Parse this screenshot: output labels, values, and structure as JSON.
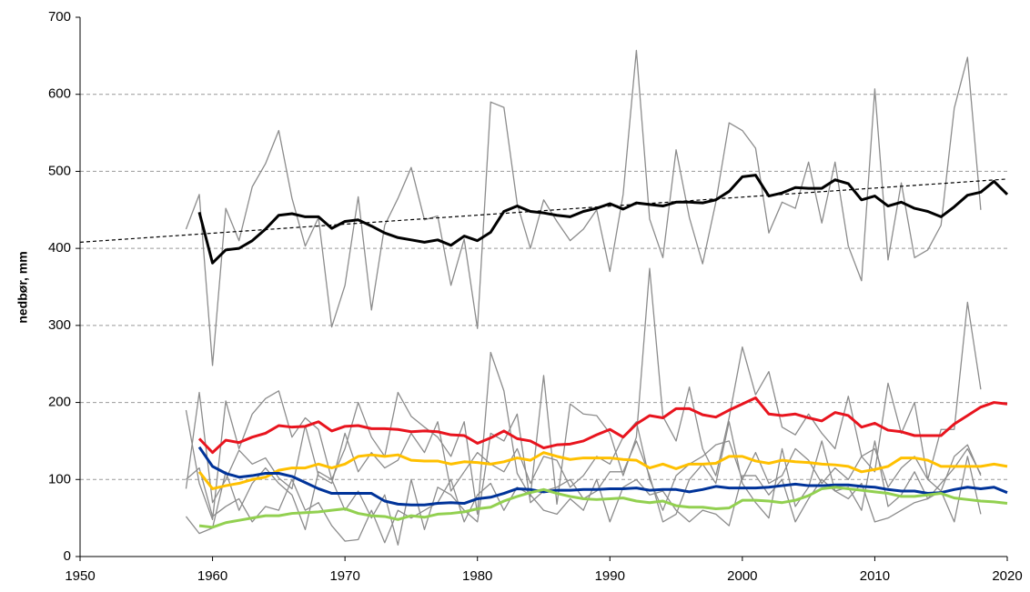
{
  "chart_data": {
    "type": "line",
    "y_label": "nedbør, mm",
    "xlim": [
      1950,
      2020
    ],
    "xticks": [
      1950,
      1960,
      1970,
      1980,
      1990,
      2000,
      2010,
      2020
    ],
    "ylim": [
      0,
      700
    ],
    "yticks": [
      0,
      100,
      200,
      300,
      400,
      500,
      600,
      700
    ],
    "grid": true,
    "x": [
      1958,
      1959,
      1960,
      1961,
      1962,
      1963,
      1964,
      1965,
      1966,
      1967,
      1968,
      1969,
      1970,
      1971,
      1972,
      1973,
      1974,
      1975,
      1976,
      1977,
      1978,
      1979,
      1980,
      1981,
      1982,
      1983,
      1984,
      1985,
      1986,
      1987,
      1988,
      1989,
      1990,
      1991,
      1992,
      1993,
      1994,
      1995,
      1996,
      1997,
      1998,
      1999,
      2000,
      2001,
      2002,
      2003,
      2004,
      2005,
      2006,
      2007,
      2008,
      2009,
      2010,
      2011,
      2012,
      2013,
      2014,
      2015,
      2016,
      2017,
      2018,
      2019,
      2020
    ],
    "series": [
      {
        "color": "#8c8c8c",
        "width": 1.3,
        "values": [
          425,
          470,
          248,
          452,
          410,
          480,
          510,
          553,
          465,
          403,
          440,
          298,
          352,
          467,
          320,
          430,
          465,
          505,
          437,
          442,
          352,
          412,
          296,
          590,
          583,
          458,
          400,
          463,
          435,
          410,
          425,
          450,
          370,
          470,
          657,
          438,
          388,
          528,
          440,
          380,
          460,
          563,
          553,
          530,
          420,
          460,
          452,
          512,
          433,
          512,
          403,
          358,
          607,
          385,
          485,
          388,
          398,
          430,
          582,
          648,
          450,
          null,
          null
        ]
      },
      {
        "color": "#8c8c8c",
        "width": 1.3,
        "values": [
          190,
          95,
          48,
          202,
          140,
          185,
          205,
          215,
          155,
          180,
          165,
          100,
          140,
          200,
          155,
          130,
          213,
          182,
          168,
          155,
          130,
          175,
          55,
          265,
          215,
          108,
          78,
          235,
          68,
          198,
          185,
          183,
          160,
          105,
          155,
          374,
          182,
          150,
          220,
          140,
          105,
          180,
          272,
          210,
          240,
          168,
          158,
          185,
          160,
          140,
          208,
          130,
          110,
          225,
          160,
          200,
          100,
          165,
          165,
          330,
          217,
          null,
          null
        ]
      },
      {
        "color": "#8c8c8c",
        "width": 1.3,
        "values": [
          88,
          213,
          70,
          100,
          138,
          120,
          128,
          102,
          88,
          170,
          105,
          95,
          160,
          110,
          135,
          115,
          125,
          160,
          135,
          175,
          85,
          110,
          135,
          120,
          110,
          140,
          95,
          130,
          125,
          90,
          105,
          130,
          120,
          155,
          175,
          100,
          60,
          105,
          120,
          130,
          145,
          150,
          100,
          135,
          95,
          105,
          140,
          125,
          95,
          115,
          100,
          130,
          140,
          90,
          115,
          130,
          100,
          85,
          130,
          145,
          105,
          null,
          null
        ]
      },
      {
        "color": "#8c8c8c",
        "width": 1.3,
        "values": [
          52,
          30,
          37,
          110,
          60,
          95,
          115,
          95,
          80,
          35,
          110,
          100,
          60,
          85,
          50,
          80,
          15,
          100,
          35,
          90,
          80,
          60,
          45,
          160,
          150,
          185,
          70,
          85,
          90,
          100,
          75,
          85,
          110,
          110,
          150,
          105,
          45,
          55,
          100,
          120,
          95,
          175,
          95,
          70,
          50,
          140,
          65,
          90,
          150,
          85,
          90,
          60,
          150,
          65,
          80,
          110,
          75,
          85,
          45,
          130,
          55,
          null,
          null
        ]
      },
      {
        "color": "#8c8c8c",
        "width": 1.3,
        "values": [
          100,
          115,
          52,
          65,
          75,
          45,
          65,
          60,
          100,
          60,
          70,
          40,
          20,
          22,
          60,
          18,
          60,
          50,
          60,
          70,
          100,
          45,
          80,
          95,
          60,
          90,
          80,
          60,
          55,
          75,
          60,
          100,
          45,
          90,
          100,
          80,
          85,
          60,
          45,
          60,
          55,
          40,
          105,
          105,
          80,
          100,
          45,
          75,
          100,
          85,
          75,
          95,
          45,
          50,
          60,
          70,
          75,
          95,
          115,
          140,
          107,
          null,
          null
        ]
      },
      {
        "color": "#000000",
        "width": 1.2,
        "dash": true,
        "x": [
          1950,
          2020
        ],
        "values": [
          408,
          490
        ]
      },
      {
        "color": "#e8141e",
        "width": 3,
        "values": [
          null,
          153,
          135,
          151,
          148,
          155,
          160,
          170,
          168,
          169,
          175,
          163,
          169,
          170,
          166,
          166,
          165,
          162,
          163,
          162,
          158,
          157,
          147,
          154,
          163,
          153,
          150,
          141,
          145,
          146,
          150,
          158,
          165,
          155,
          172,
          183,
          180,
          192,
          192,
          184,
          181,
          190,
          198,
          206,
          185,
          183,
          185,
          180,
          176,
          187,
          183,
          168,
          173,
          164,
          162,
          157,
          157,
          157,
          172,
          183,
          194,
          200,
          198
        ]
      },
      {
        "color": "#ffc000",
        "width": 3,
        "values": [
          null,
          110,
          88,
          92,
          95,
          100,
          103,
          112,
          115,
          115,
          120,
          115,
          120,
          130,
          132,
          130,
          132,
          125,
          124,
          124,
          120,
          123,
          122,
          120,
          123,
          128,
          125,
          135,
          130,
          126,
          128,
          128,
          128,
          126,
          125,
          115,
          120,
          114,
          120,
          120,
          121,
          130,
          130,
          124,
          121,
          125,
          123,
          122,
          120,
          119,
          117,
          110,
          113,
          117,
          128,
          128,
          125,
          117,
          117,
          117,
          117,
          120,
          117
        ]
      },
      {
        "color": "#003399",
        "width": 3,
        "values": [
          null,
          142,
          117,
          108,
          103,
          105,
          108,
          108,
          104,
          96,
          88,
          82,
          82,
          82,
          82,
          72,
          68,
          67,
          67,
          69,
          70,
          69,
          75,
          77,
          82,
          88,
          87,
          84,
          86,
          86,
          87,
          87,
          88,
          88,
          89,
          86,
          87,
          87,
          84,
          87,
          91,
          89,
          89,
          89,
          90,
          92,
          94,
          92,
          92,
          93,
          93,
          91,
          90,
          87,
          85,
          85,
          82,
          83,
          87,
          90,
          88,
          90,
          83
        ]
      },
      {
        "color": "#92d050",
        "width": 3,
        "values": [
          null,
          40,
          38,
          44,
          47,
          50,
          53,
          53,
          56,
          57,
          58,
          60,
          62,
          56,
          53,
          52,
          48,
          53,
          51,
          55,
          56,
          58,
          62,
          64,
          72,
          78,
          83,
          87,
          82,
          78,
          75,
          74,
          75,
          76,
          72,
          70,
          72,
          66,
          64,
          64,
          62,
          63,
          73,
          73,
          72,
          70,
          73,
          79,
          88,
          90,
          88,
          86,
          84,
          82,
          78,
          78,
          80,
          82,
          76,
          74,
          72,
          71,
          69
        ]
      },
      {
        "color": "#000000",
        "width": 3,
        "values": [
          null,
          447,
          381,
          398,
          400,
          410,
          425,
          443,
          445,
          441,
          441,
          426,
          435,
          437,
          429,
          420,
          414,
          411,
          408,
          411,
          404,
          416,
          410,
          421,
          448,
          455,
          448,
          446,
          443,
          441,
          448,
          452,
          458,
          451,
          459,
          457,
          455,
          460,
          460,
          459,
          463,
          474,
          493,
          495,
          468,
          472,
          479,
          478,
          478,
          489,
          484,
          463,
          468,
          455,
          460,
          452,
          448,
          441,
          454,
          469,
          473,
          487,
          470
        ]
      }
    ]
  }
}
